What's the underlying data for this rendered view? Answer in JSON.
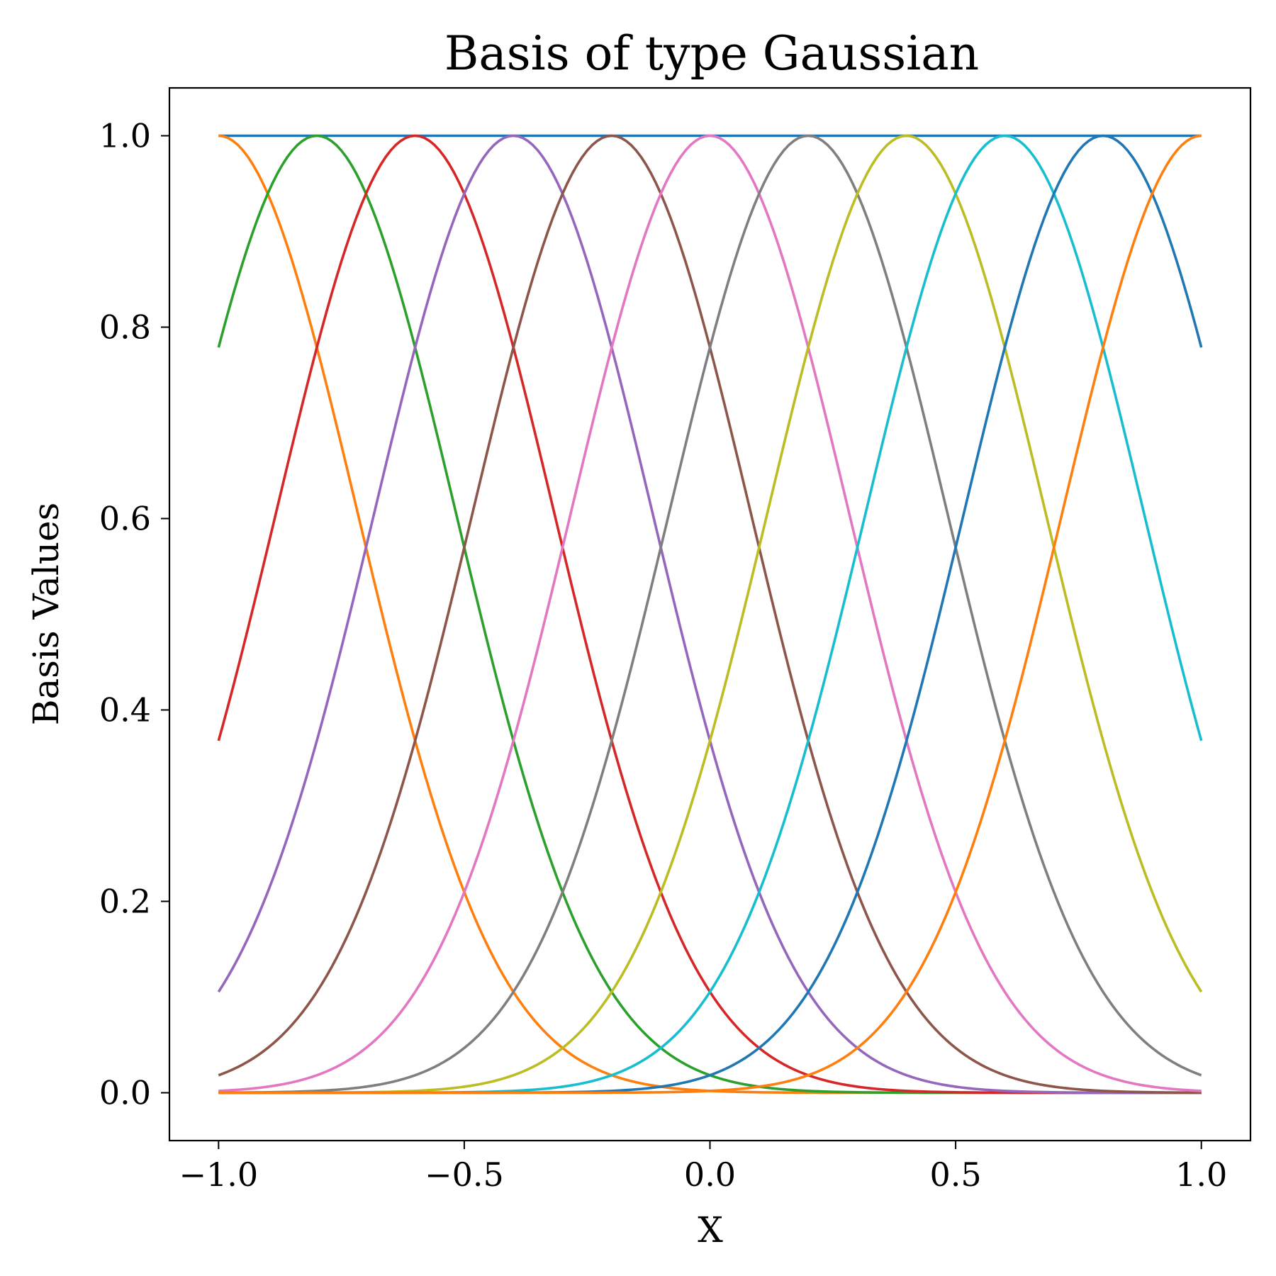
{
  "chart_data": {
    "type": "line",
    "title": "Basis of type Gaussian",
    "xlabel": "X",
    "ylabel": "Basis Values",
    "xlim": [
      -1.1,
      1.1
    ],
    "ylim": [
      -0.05,
      1.05
    ],
    "xticks": [
      {
        "value": -1.0,
        "label": "−1.0"
      },
      {
        "value": -0.5,
        "label": "−0.5"
      },
      {
        "value": 0.0,
        "label": "0.0"
      },
      {
        "value": 0.5,
        "label": "0.5"
      },
      {
        "value": 1.0,
        "label": "1.0"
      }
    ],
    "yticks": [
      {
        "value": 0.0,
        "label": "0.0"
      },
      {
        "value": 0.2,
        "label": "0.2"
      },
      {
        "value": 0.4,
        "label": "0.4"
      },
      {
        "value": 0.6,
        "label": "0.6"
      },
      {
        "value": 0.8,
        "label": "0.8"
      },
      {
        "value": 1.0,
        "label": "1.0"
      }
    ],
    "grid": false,
    "legend": "none",
    "x_range": [
      -1.0,
      1.0
    ],
    "gaussian_width": 0.16,
    "series": [
      {
        "kind": "constant",
        "value": 1.0,
        "color": "#1f77b4"
      },
      {
        "kind": "gaussian",
        "center": -1.0,
        "color": "#ff7f0e"
      },
      {
        "kind": "gaussian",
        "center": -0.8,
        "color": "#2ca02c"
      },
      {
        "kind": "gaussian",
        "center": -0.6,
        "color": "#d62728"
      },
      {
        "kind": "gaussian",
        "center": -0.4,
        "color": "#9467bd"
      },
      {
        "kind": "gaussian",
        "center": -0.2,
        "color": "#8c564b"
      },
      {
        "kind": "gaussian",
        "center": 0.0,
        "color": "#e377c2"
      },
      {
        "kind": "gaussian",
        "center": 0.2,
        "color": "#7f7f7f"
      },
      {
        "kind": "gaussian",
        "center": 0.4,
        "color": "#bcbd22"
      },
      {
        "kind": "gaussian",
        "center": 0.6,
        "color": "#17becf"
      },
      {
        "kind": "gaussian",
        "center": 0.8,
        "color": "#1f77b4"
      },
      {
        "kind": "gaussian",
        "center": 1.0,
        "color": "#ff7f0e"
      }
    ]
  }
}
